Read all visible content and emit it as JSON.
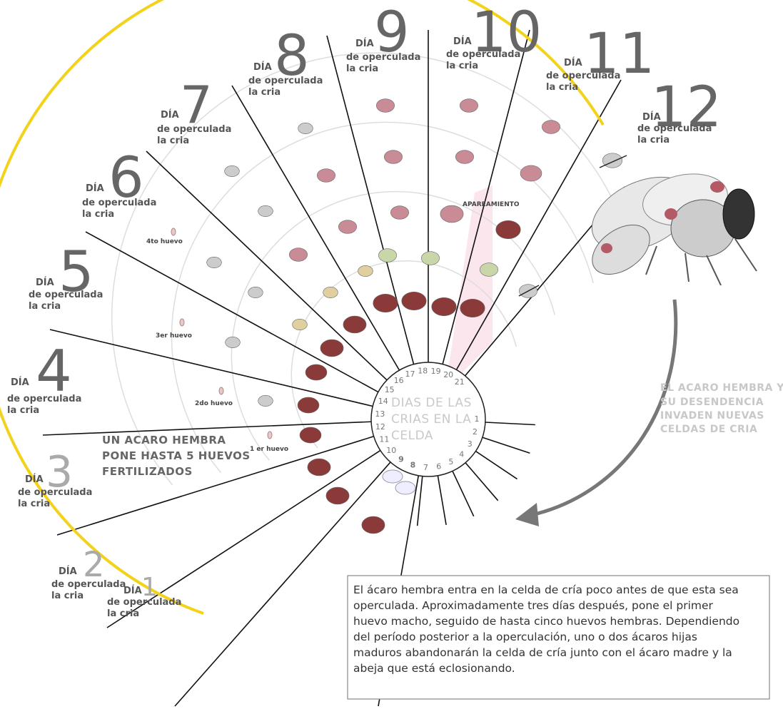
{
  "day_word": "DÍA",
  "day_subtitle": [
    "de operculada",
    "la cria"
  ],
  "days": [
    "1",
    "2",
    "3",
    "4",
    "5",
    "6",
    "7",
    "8",
    "9",
    "10",
    "11",
    "12"
  ],
  "circle": {
    "title_lines": [
      "DIAS DE LAS",
      "CRIAS EN LA",
      "CELDA"
    ],
    "numbers": [
      1,
      2,
      3,
      4,
      5,
      6,
      7,
      8,
      9,
      10,
      11,
      12,
      13,
      14,
      15,
      16,
      17,
      18,
      19,
      20,
      21
    ]
  },
  "eggs": [
    "4to huevo",
    "3er huevo",
    "2do huevo",
    "1 er huevo"
  ],
  "mating": "APAREAMIENTO",
  "left_note": [
    "UN ACARO HEMBRA",
    "PONE HASTA 5 HUEVOS",
    "FERTILIZADOS"
  ],
  "right_note": [
    "EL ACARO HEMBRA Y",
    "SU DESENDENCIA",
    "INVADEN NUEVAS",
    "CELDAS DE CRIA"
  ],
  "paragraph": [
    "El ácaro hembra entra en la celda de cría poco antes de que esta sea",
    "operculada. Aproximadamente tres días después, pone el primer",
    "huevo macho, seguido de hasta cinco huevos hembras. Dependiendo",
    "del período posterior a la operculación, uno o dos ácaros hijas",
    "maduros abandonarán la celda de cría junto con el ácaro madre y la",
    "abeja que está eclosionando."
  ]
}
